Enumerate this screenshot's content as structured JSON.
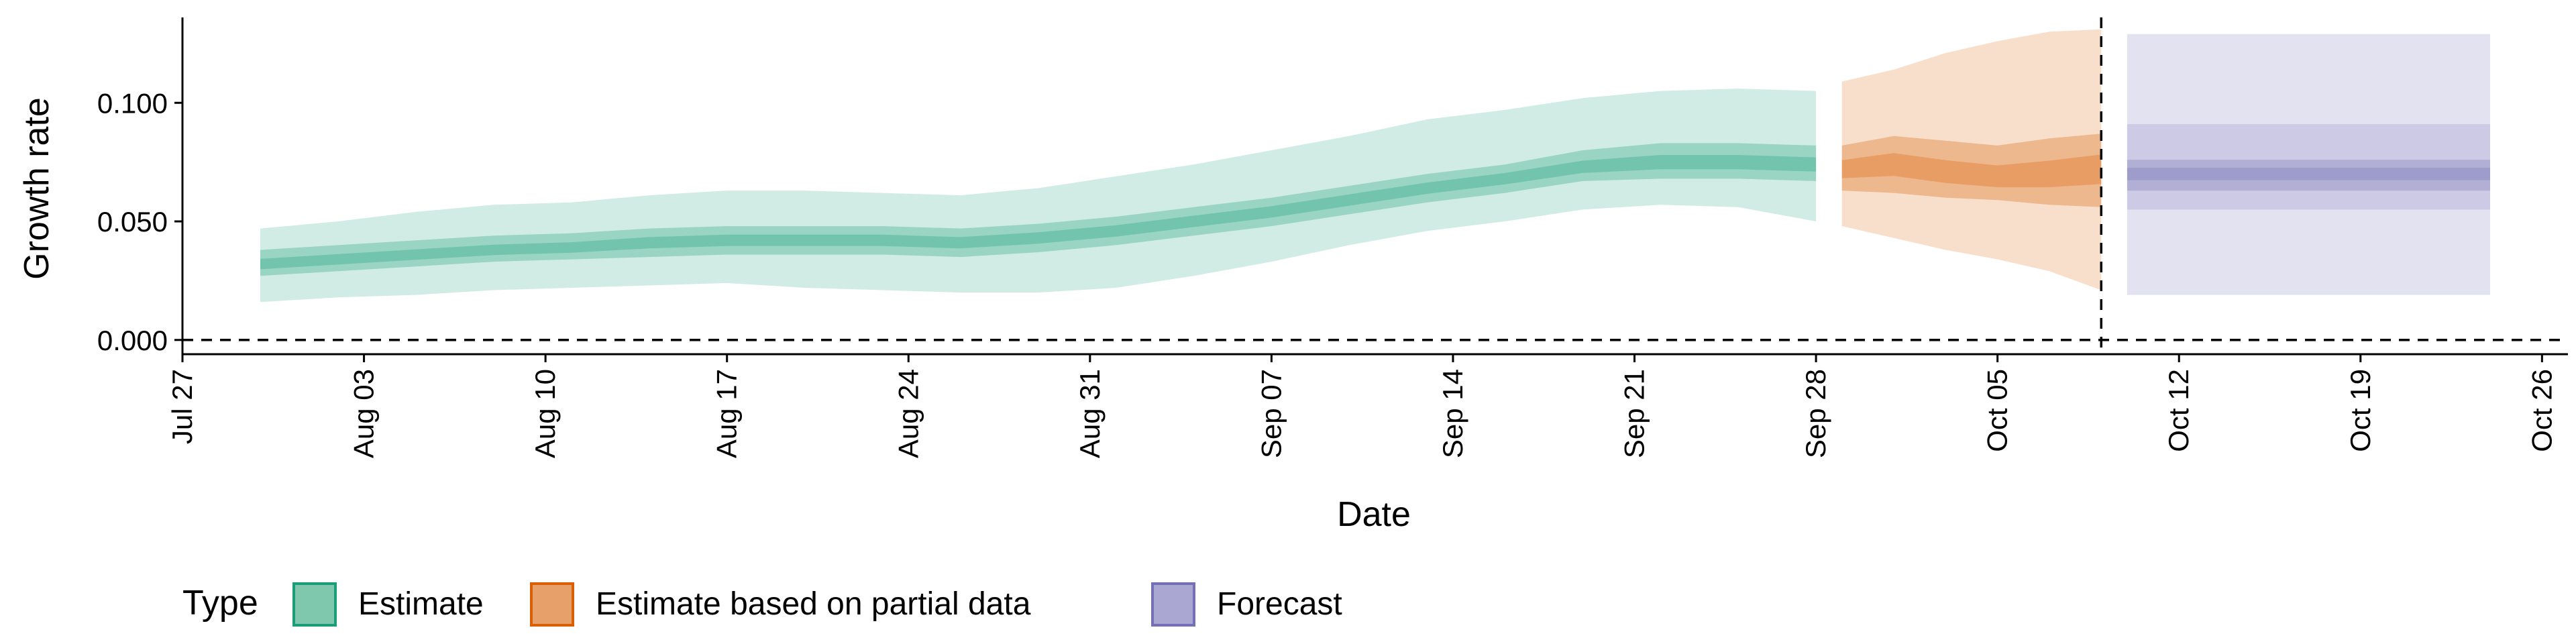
{
  "chart_data": {
    "type": "area",
    "ylabel": "Growth rate",
    "xlabel": "Date",
    "ylim": [
      -0.006,
      0.136
    ],
    "xlim": [
      "2020-07-27",
      "2020-10-27"
    ],
    "y_ticks": [
      {
        "value": 0.0,
        "label": "0.000"
      },
      {
        "value": 0.05,
        "label": "0.050"
      },
      {
        "value": 0.1,
        "label": "0.100"
      }
    ],
    "x_ticks": [
      {
        "date": "2020-07-27",
        "label": "Jul 27"
      },
      {
        "date": "2020-08-03",
        "label": "Aug 03"
      },
      {
        "date": "2020-08-10",
        "label": "Aug 10"
      },
      {
        "date": "2020-08-17",
        "label": "Aug 17"
      },
      {
        "date": "2020-08-24",
        "label": "Aug 24"
      },
      {
        "date": "2020-08-31",
        "label": "Aug 31"
      },
      {
        "date": "2020-09-07",
        "label": "Sep 07"
      },
      {
        "date": "2020-09-14",
        "label": "Sep 14"
      },
      {
        "date": "2020-09-21",
        "label": "Sep 21"
      },
      {
        "date": "2020-09-28",
        "label": "Sep 28"
      },
      {
        "date": "2020-10-05",
        "label": "Oct 05"
      },
      {
        "date": "2020-10-12",
        "label": "Oct 12"
      },
      {
        "date": "2020-10-19",
        "label": "Oct 19"
      },
      {
        "date": "2020-10-26",
        "label": "Oct 26"
      }
    ],
    "grid": false,
    "reference_lines": {
      "horizontal_y": 0.0,
      "vertical_date": "2020-10-09"
    },
    "legend": {
      "position": "bottom-left",
      "title": "Type",
      "entries": [
        {
          "label": "Estimate",
          "fill": "#7fc7ad",
          "stroke": "#1b9e77"
        },
        {
          "label": "Estimate based on partial data",
          "fill": "#e8a06a",
          "stroke": "#d95f02"
        },
        {
          "label": "Forecast",
          "fill": "#aaa7d2",
          "stroke": "#7570b3"
        }
      ]
    },
    "series": [
      {
        "name": "Estimate",
        "color": "#1b9e77",
        "x": [
          "2020-07-30",
          "2020-08-02",
          "2020-08-05",
          "2020-08-08",
          "2020-08-11",
          "2020-08-14",
          "2020-08-17",
          "2020-08-20",
          "2020-08-23",
          "2020-08-26",
          "2020-08-29",
          "2020-09-01",
          "2020-09-04",
          "2020-09-07",
          "2020-09-10",
          "2020-09-13",
          "2020-09-16",
          "2020-09-19",
          "2020-09-22",
          "2020-09-25",
          "2020-09-28"
        ],
        "median": [
          0.032,
          0.034,
          0.036,
          0.038,
          0.039,
          0.041,
          0.042,
          0.042,
          0.042,
          0.041,
          0.043,
          0.046,
          0.05,
          0.054,
          0.059,
          0.064,
          0.068,
          0.073,
          0.075,
          0.075,
          0.074
        ],
        "lower_50": [
          0.027,
          0.029,
          0.031,
          0.033,
          0.034,
          0.035,
          0.036,
          0.036,
          0.036,
          0.035,
          0.037,
          0.04,
          0.044,
          0.048,
          0.053,
          0.058,
          0.062,
          0.067,
          0.068,
          0.068,
          0.067
        ],
        "upper_50": [
          0.038,
          0.04,
          0.042,
          0.044,
          0.045,
          0.047,
          0.048,
          0.048,
          0.048,
          0.047,
          0.049,
          0.052,
          0.056,
          0.06,
          0.065,
          0.07,
          0.074,
          0.08,
          0.083,
          0.083,
          0.082
        ],
        "lower_90": [
          0.016,
          0.018,
          0.019,
          0.021,
          0.022,
          0.023,
          0.024,
          0.022,
          0.021,
          0.02,
          0.02,
          0.022,
          0.027,
          0.033,
          0.04,
          0.046,
          0.05,
          0.055,
          0.057,
          0.056,
          0.05
        ],
        "upper_90": [
          0.047,
          0.05,
          0.054,
          0.057,
          0.058,
          0.061,
          0.063,
          0.063,
          0.062,
          0.061,
          0.064,
          0.069,
          0.074,
          0.08,
          0.086,
          0.093,
          0.097,
          0.102,
          0.105,
          0.106,
          0.105
        ]
      },
      {
        "name": "Estimate based on partial data",
        "color": "#d95f02",
        "x": [
          "2020-09-29",
          "2020-10-01",
          "2020-10-03",
          "2020-10-05",
          "2020-10-07",
          "2020-10-09"
        ],
        "median": [
          0.072,
          0.074,
          0.071,
          0.069,
          0.07,
          0.072
        ],
        "lower_50": [
          0.063,
          0.062,
          0.06,
          0.059,
          0.057,
          0.056
        ],
        "upper_50": [
          0.082,
          0.086,
          0.084,
          0.082,
          0.085,
          0.087
        ],
        "lower_90": [
          0.048,
          0.043,
          0.038,
          0.034,
          0.029,
          0.021
        ],
        "upper_90": [
          0.109,
          0.114,
          0.121,
          0.126,
          0.13,
          0.131
        ]
      },
      {
        "name": "Forecast",
        "color": "#7570b3",
        "x": [
          "2020-10-10",
          "2020-10-24"
        ],
        "median": [
          0.07,
          0.07
        ],
        "lower_50": [
          0.063,
          0.063
        ],
        "upper_50": [
          0.076,
          0.076
        ],
        "lower_90": [
          0.055,
          0.055
        ],
        "upper_90": [
          0.091,
          0.091
        ],
        "lower_95": [
          0.019,
          0.019
        ],
        "upper_95": [
          0.129,
          0.129
        ]
      }
    ]
  }
}
